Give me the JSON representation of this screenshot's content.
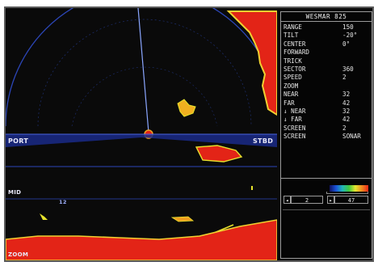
{
  "panel": {
    "title": "WESMAR 825",
    "menu": [
      {
        "label": "RANGE",
        "value": "150"
      },
      {
        "label": "TILT",
        "value": "-20°"
      },
      {
        "label": "CENTER",
        "value": "0°"
      },
      {
        "label": "FORWARD",
        "value": ""
      },
      {
        "label": "TRICK",
        "value": ""
      },
      {
        "label": "SECTOR",
        "value": "360"
      },
      {
        "label": "SPEED",
        "value": "2"
      },
      {
        "label": "ZOOM",
        "value": ""
      },
      {
        "label": "NEAR",
        "value": "32"
      },
      {
        "label": "FAR",
        "value": "42"
      },
      {
        "label": "↓ NEAR",
        "value": "32"
      },
      {
        "label": "↓ FAR",
        "value": "42"
      },
      {
        "label": "SCREEN",
        "value": "2"
      },
      {
        "label": "SCREEN",
        "value": "SONAR"
      }
    ],
    "gain_left": "2",
    "gain_right": "47",
    "arrow_left": "◂",
    "arrow_right": "▸"
  },
  "display": {
    "port_label": "PORT",
    "stbd_label": "STBD",
    "mid_label": "MID",
    "mark_label": "12",
    "bottom_label": "ZOOM"
  },
  "colors": {
    "echo_strong": "#e32417",
    "echo_mid": "#f0a020",
    "echo_weak": "#e6e22c",
    "sweep_line": "#3a5ad8",
    "grid": "#223a9a"
  }
}
